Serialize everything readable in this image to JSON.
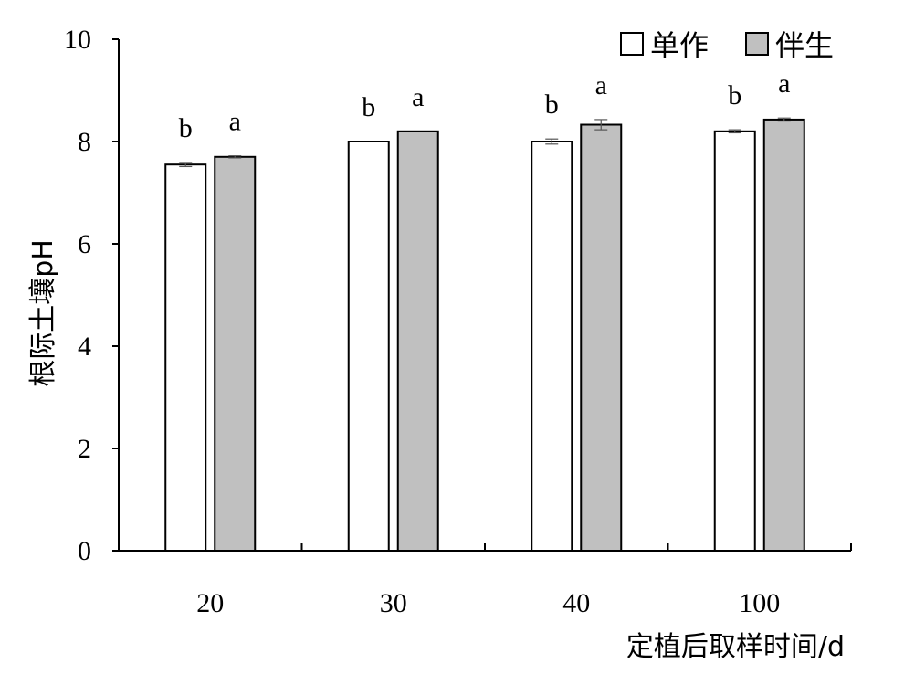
{
  "chart_data": {
    "type": "bar",
    "title": "",
    "xlabel": "定植后取样时间/d",
    "ylabel": "根际土壤pH",
    "categories": [
      "20",
      "30",
      "40",
      "100"
    ],
    "ylim": [
      0,
      10
    ],
    "yticks": [
      0,
      2,
      4,
      6,
      8,
      10
    ],
    "grid": false,
    "legend": "top-right",
    "series": [
      {
        "name": "单作",
        "color": "#ffffff",
        "values": [
          7.55,
          8.0,
          8.0,
          8.2
        ],
        "errors": [
          0.04,
          0.0,
          0.05,
          0.03
        ],
        "labels": [
          "b",
          "b",
          "b",
          "b"
        ]
      },
      {
        "name": "伴生",
        "color": "#c0c0c0",
        "values": [
          7.7,
          8.2,
          8.33,
          8.43
        ],
        "errors": [
          0.02,
          0.0,
          0.1,
          0.03
        ],
        "labels": [
          "a",
          "a",
          "a",
          "a"
        ]
      }
    ]
  }
}
